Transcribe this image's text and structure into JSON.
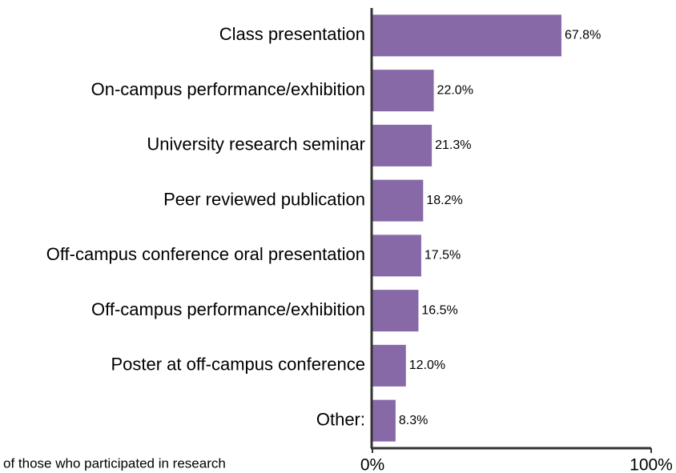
{
  "chart_data": {
    "type": "bar",
    "orientation": "horizontal",
    "xlabel": "of those who participated in research",
    "categories": [
      "Class presentation",
      "On-campus performance/exhibition",
      "University research seminar",
      "Peer reviewed publication",
      "Off-campus conference oral presentation",
      "Off-campus performance/exhibition",
      "Poster at off-campus conference",
      "Other:"
    ],
    "values": [
      67.8,
      22.0,
      21.3,
      18.2,
      17.5,
      16.5,
      12.0,
      8.3
    ],
    "value_labels": [
      "67.8%",
      "22.0%",
      "21.3%",
      "18.2%",
      "17.5%",
      "16.5%",
      "12.0%",
      "8.3%"
    ],
    "color": "#8769a8",
    "xlim": [
      0,
      100
    ],
    "xticks": [
      {
        "value": 0,
        "label": "0%"
      },
      {
        "value": 100,
        "label": "100%"
      }
    ]
  }
}
